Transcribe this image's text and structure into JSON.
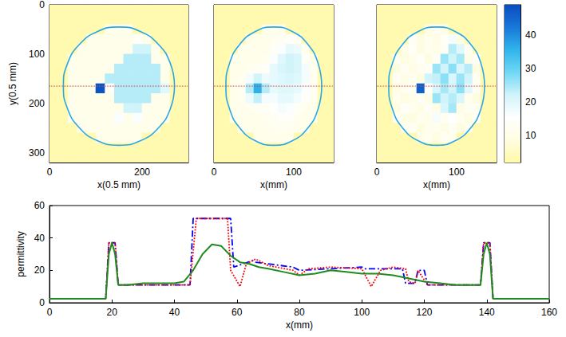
{
  "chart_data": [
    {
      "type": "heatmap",
      "xlabel": "x(0.5 mm)",
      "ylabel": "y(0.5 mm)",
      "xlim": [
        0,
        300
      ],
      "ylim": [
        0,
        320
      ],
      "xticks": [
        0,
        200
      ],
      "yticks": [
        0,
        100,
        200,
        300
      ],
      "x": [
        10,
        30,
        50,
        70,
        90,
        110,
        130,
        150,
        170,
        190,
        210,
        230,
        250,
        270,
        290
      ],
      "y": [
        10,
        30,
        50,
        70,
        90,
        110,
        130,
        150,
        170,
        190,
        210,
        230,
        250,
        270,
        290,
        310
      ],
      "cells": [
        [
          3,
          3,
          3,
          3,
          3,
          3,
          3,
          3,
          3,
          3,
          3,
          3,
          3,
          3,
          3
        ],
        [
          3,
          3,
          3,
          3,
          3,
          3,
          3,
          3,
          3,
          3,
          3,
          3,
          3,
          3,
          3
        ],
        [
          3,
          3,
          3,
          3,
          3,
          3,
          11,
          11,
          11,
          3,
          3,
          3,
          3,
          3,
          3
        ],
        [
          3,
          3,
          3,
          3,
          11,
          11,
          11,
          11,
          11,
          14,
          11,
          3,
          3,
          3,
          3
        ],
        [
          3,
          3,
          3,
          11,
          11,
          11,
          11,
          11,
          11,
          22,
          22,
          11,
          3,
          3,
          3
        ],
        [
          3,
          3,
          11,
          11,
          11,
          11,
          11,
          11,
          24,
          24,
          24,
          11,
          11,
          3,
          3
        ],
        [
          3,
          3,
          11,
          11,
          11,
          11,
          11,
          24,
          24,
          24,
          24,
          24,
          11,
          3,
          3
        ],
        [
          3,
          3,
          11,
          11,
          11,
          11,
          24,
          24,
          24,
          24,
          24,
          24,
          11,
          3,
          3
        ],
        [
          3,
          3,
          11,
          11,
          11,
          48,
          14,
          24,
          24,
          24,
          24,
          24,
          20,
          3,
          3
        ],
        [
          3,
          3,
          11,
          11,
          11,
          11,
          11,
          24,
          24,
          24,
          24,
          11,
          11,
          3,
          3
        ],
        [
          3,
          3,
          11,
          11,
          11,
          11,
          11,
          11,
          22,
          22,
          11,
          11,
          11,
          3,
          3
        ],
        [
          3,
          3,
          11,
          11,
          11,
          11,
          11,
          16,
          11,
          16,
          11,
          11,
          11,
          3,
          3
        ],
        [
          3,
          3,
          3,
          11,
          11,
          11,
          11,
          11,
          11,
          11,
          11,
          11,
          3,
          3,
          3
        ],
        [
          3,
          3,
          3,
          3,
          3,
          11,
          11,
          11,
          11,
          11,
          3,
          3,
          3,
          3,
          3
        ],
        [
          3,
          3,
          3,
          3,
          3,
          3,
          3,
          3,
          3,
          3,
          3,
          3,
          3,
          3,
          3
        ],
        [
          3,
          3,
          3,
          3,
          3,
          3,
          3,
          3,
          3,
          3,
          3,
          3,
          3,
          3,
          3
        ]
      ],
      "profile_y": 165,
      "boundary": {
        "value": 37,
        "x": [
          270,
          261,
          235,
          196,
          150,
          104,
          65,
          39,
          30,
          39,
          65,
          104,
          150,
          196,
          235,
          261,
          270
        ],
        "y": [
          165,
          211,
          250,
          276,
          285,
          276,
          250,
          211,
          165,
          119,
          80,
          54,
          45,
          54,
          80,
          119,
          165
        ]
      }
    },
    {
      "type": "heatmap",
      "xlabel": "x(mm)",
      "tick_labels": "x",
      "xlim": [
        0,
        150
      ],
      "ylim": [
        0,
        160
      ],
      "xticks": [
        0,
        100
      ],
      "x": [
        5,
        15,
        25,
        35,
        45,
        55,
        65,
        75,
        85,
        95,
        105,
        115,
        125,
        135,
        145
      ],
      "y": [
        5,
        15,
        25,
        35,
        45,
        55,
        65,
        75,
        85,
        95,
        105,
        115,
        125,
        135,
        145,
        155
      ],
      "cells": [
        [
          3,
          3,
          3,
          3,
          3,
          3,
          3,
          3,
          3,
          3,
          3,
          3,
          3,
          3,
          3
        ],
        [
          3,
          3,
          3,
          3,
          3,
          3,
          3,
          3,
          3,
          3,
          3,
          3,
          3,
          3,
          3
        ],
        [
          3,
          3,
          3,
          3,
          3,
          3,
          11,
          11,
          11,
          3,
          3,
          3,
          3,
          3,
          3
        ],
        [
          3,
          3,
          3,
          3,
          11,
          11,
          11,
          12,
          13,
          14,
          12,
          3,
          3,
          3,
          3
        ],
        [
          3,
          3,
          3,
          11,
          11,
          11,
          11,
          13,
          16,
          19,
          18,
          12,
          3,
          3,
          3
        ],
        [
          3,
          3,
          11,
          11,
          11,
          11,
          12,
          16,
          20,
          22,
          21,
          14,
          11,
          3,
          3
        ],
        [
          3,
          3,
          11,
          11,
          12,
          13,
          14,
          19,
          21,
          22,
          21,
          17,
          12,
          3,
          3
        ],
        [
          3,
          3,
          11,
          12,
          17,
          22,
          18,
          19,
          20,
          21,
          20,
          17,
          12,
          3,
          3
        ],
        [
          3,
          3,
          11,
          13,
          24,
          36,
          24,
          19,
          20,
          20,
          19,
          16,
          13,
          3,
          3
        ],
        [
          3,
          3,
          11,
          12,
          18,
          23,
          17,
          17,
          19,
          19,
          17,
          14,
          12,
          3,
          3
        ],
        [
          3,
          3,
          11,
          11,
          12,
          13,
          13,
          15,
          17,
          16,
          14,
          12,
          11,
          3,
          3
        ],
        [
          3,
          3,
          11,
          11,
          11,
          11,
          12,
          13,
          14,
          14,
          12,
          11,
          11,
          3,
          3
        ],
        [
          3,
          3,
          3,
          11,
          11,
          11,
          11,
          12,
          12,
          12,
          11,
          11,
          3,
          3,
          3
        ],
        [
          3,
          3,
          3,
          3,
          3,
          11,
          11,
          11,
          11,
          11,
          3,
          3,
          3,
          3,
          3
        ],
        [
          3,
          3,
          3,
          3,
          3,
          3,
          3,
          3,
          3,
          3,
          3,
          3,
          3,
          3,
          3
        ],
        [
          3,
          3,
          3,
          3,
          3,
          3,
          3,
          3,
          3,
          3,
          3,
          3,
          3,
          3,
          3
        ]
      ],
      "profile_y": 82.5,
      "boundary": {
        "value": 37,
        "x": [
          135,
          130.5,
          117.5,
          98,
          75,
          52,
          32.5,
          19.5,
          15,
          19.5,
          32.5,
          52,
          75,
          98,
          117.5,
          130.5,
          135
        ],
        "y": [
          82.5,
          105.5,
          125,
          138,
          142.5,
          138,
          125,
          105.5,
          82.5,
          59.5,
          40,
          27,
          22.5,
          27,
          40,
          59.5,
          82.5
        ]
      }
    },
    {
      "type": "heatmap",
      "xlabel": "x(mm)",
      "tick_labels": "x",
      "xlim": [
        0,
        150
      ],
      "ylim": [
        0,
        160
      ],
      "xticks": [
        0,
        100
      ],
      "x": [
        5,
        15,
        25,
        35,
        45,
        55,
        65,
        75,
        85,
        95,
        105,
        115,
        125,
        135,
        145
      ],
      "y": [
        5,
        15,
        25,
        35,
        45,
        55,
        65,
        75,
        85,
        95,
        105,
        115,
        125,
        135,
        145,
        155
      ],
      "cells": [
        [
          3,
          3,
          3,
          3,
          3,
          3,
          3,
          3,
          3,
          3,
          3,
          3,
          3,
          3,
          3
        ],
        [
          3,
          3,
          3,
          3,
          3,
          3,
          3,
          3,
          3,
          3,
          3,
          3,
          3,
          3,
          3
        ],
        [
          3,
          3,
          3,
          3,
          3,
          3,
          9,
          13,
          10,
          3,
          3,
          3,
          3,
          3,
          3
        ],
        [
          3,
          3,
          3,
          3,
          13,
          9,
          12,
          10,
          14,
          17,
          9,
          3,
          3,
          3,
          3
        ],
        [
          3,
          3,
          3,
          10,
          14,
          9,
          12,
          11,
          13,
          24,
          20,
          13,
          3,
          3,
          3
        ],
        [
          3,
          3,
          12,
          9,
          11,
          14,
          9,
          13,
          26,
          22,
          25,
          10,
          14,
          3,
          3
        ],
        [
          3,
          3,
          9,
          13,
          10,
          12,
          14,
          26,
          22,
          27,
          21,
          24,
          9,
          3,
          3
        ],
        [
          3,
          3,
          13,
          10,
          12,
          9,
          22,
          23,
          27,
          21,
          26,
          22,
          12,
          3,
          3
        ],
        [
          3,
          3,
          10,
          12,
          13,
          46,
          15,
          21,
          25,
          22,
          27,
          20,
          13,
          3,
          3
        ],
        [
          3,
          3,
          12,
          9,
          11,
          13,
          10,
          26,
          22,
          24,
          21,
          12,
          9,
          3,
          3
        ],
        [
          3,
          3,
          9,
          14,
          12,
          10,
          13,
          10,
          21,
          25,
          10,
          13,
          12,
          3,
          3
        ],
        [
          3,
          3,
          13,
          10,
          9,
          12,
          11,
          17,
          12,
          15,
          12,
          9,
          14,
          3,
          3
        ],
        [
          3,
          3,
          3,
          12,
          13,
          9,
          11,
          12,
          10,
          13,
          9,
          12,
          3,
          3,
          3
        ],
        [
          3,
          3,
          3,
          3,
          3,
          10,
          12,
          9,
          13,
          11,
          3,
          3,
          3,
          3,
          3
        ],
        [
          3,
          3,
          3,
          3,
          3,
          3,
          3,
          3,
          3,
          3,
          3,
          3,
          3,
          3,
          3
        ],
        [
          3,
          3,
          3,
          3,
          3,
          3,
          3,
          3,
          3,
          3,
          3,
          3,
          3,
          3,
          3
        ]
      ],
      "profile_y": 82.5,
      "boundary": {
        "value": 37,
        "x": [
          135,
          130.5,
          117.5,
          98,
          75,
          52,
          32.5,
          19.5,
          15,
          19.5,
          32.5,
          52,
          75,
          98,
          117.5,
          130.5,
          135
        ],
        "y": [
          82.5,
          105.5,
          125,
          138,
          142.5,
          138,
          125,
          105.5,
          82.5,
          59.5,
          40,
          27,
          22.5,
          27,
          40,
          59.5,
          82.5
        ]
      },
      "colorbar": {
        "range": [
          2,
          49
        ],
        "ticks": [
          10,
          20,
          30,
          40
        ]
      }
    },
    {
      "type": "line",
      "xlabel": "x(mm)",
      "ylabel": "permittivity",
      "grid": false,
      "xlim": [
        0,
        160
      ],
      "xticks": [
        0,
        20,
        40,
        60,
        80,
        100,
        120,
        140,
        160
      ],
      "ylim": [
        0,
        60
      ],
      "yticks": [
        0,
        20,
        40,
        60
      ],
      "series": [
        {
          "color": "#0000ff",
          "line_style": "dashdot",
          "x": [
            0,
            18,
            19,
            21,
            22,
            45,
            46,
            58,
            59,
            65,
            66,
            78,
            80,
            100,
            101,
            113,
            114,
            117,
            118,
            120,
            121,
            138,
            139,
            141,
            142,
            160
          ],
          "values": [
            2.5,
            2.5,
            37,
            37,
            11,
            11,
            52,
            52,
            22,
            26,
            25,
            22,
            20,
            22,
            21,
            21,
            12,
            12,
            20,
            20,
            11,
            11,
            37,
            37,
            2.5,
            2.5
          ]
        },
        {
          "color": "#ff0000",
          "line_style": "dotted",
          "x": [
            0,
            18,
            19,
            21,
            22,
            45,
            47,
            57,
            58,
            61,
            63,
            66,
            70,
            78,
            80,
            83,
            90,
            100,
            103,
            106,
            110,
            114,
            115,
            117,
            118,
            121,
            138,
            139,
            141,
            142,
            160
          ],
          "values": [
            2.5,
            2.5,
            37,
            37,
            11,
            11,
            52,
            52,
            20,
            10,
            24,
            27,
            23,
            20,
            17,
            21,
            22,
            21,
            10,
            20,
            22,
            21,
            13,
            12,
            20,
            11,
            11,
            37,
            37,
            2.5,
            2.5
          ]
        },
        {
          "color": "#1f8a1f",
          "line_style": "solid",
          "x": [
            0,
            18,
            19,
            20,
            21,
            22,
            25,
            30,
            35,
            40,
            43,
            46,
            49,
            52,
            55,
            58,
            61,
            64,
            67,
            70,
            75,
            80,
            85,
            90,
            95,
            100,
            105,
            110,
            115,
            120,
            125,
            130,
            135,
            138,
            139,
            140,
            141,
            142,
            160
          ],
          "values": [
            2.5,
            2.5,
            30,
            37,
            30,
            11,
            11,
            12,
            12,
            12,
            13,
            20,
            30,
            36,
            35,
            29,
            25,
            24,
            22,
            21,
            19,
            17,
            18,
            20,
            19,
            18,
            18,
            17,
            15,
            13,
            12,
            11,
            11,
            11,
            30,
            37,
            30,
            2.5,
            2.5
          ]
        }
      ]
    }
  ]
}
